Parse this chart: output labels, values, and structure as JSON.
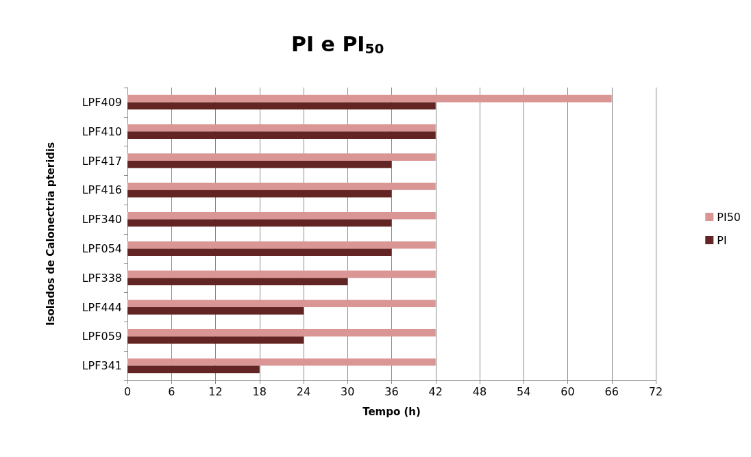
{
  "chart_data": {
    "type": "bar",
    "orientation": "horizontal",
    "title": "PI e PI$_{50}$",
    "xlabel": "Tempo (h)",
    "ylabel": "Isolados de Calonectria pteridis",
    "categories": [
      "LPF409",
      "LPF410",
      "LPF417",
      "LPF416",
      "LPF340",
      "LPF054",
      "LPF338",
      "LPF444",
      "LPF059",
      "LPF341"
    ],
    "series": [
      {
        "name": "PI50",
        "color": "#d99694",
        "values": [
          66,
          42,
          42,
          42,
          42,
          42,
          42,
          42,
          42,
          42
        ]
      },
      {
        "name": "PI",
        "color": "#632523",
        "values": [
          42,
          42,
          36,
          36,
          36,
          36,
          30,
          24,
          24,
          18
        ]
      }
    ],
    "xlim": [
      0,
      72
    ],
    "xticks": [
      0,
      6,
      12,
      18,
      24,
      30,
      36,
      42,
      48,
      54,
      60,
      66,
      72
    ],
    "grid": "x",
    "legend": "right"
  }
}
